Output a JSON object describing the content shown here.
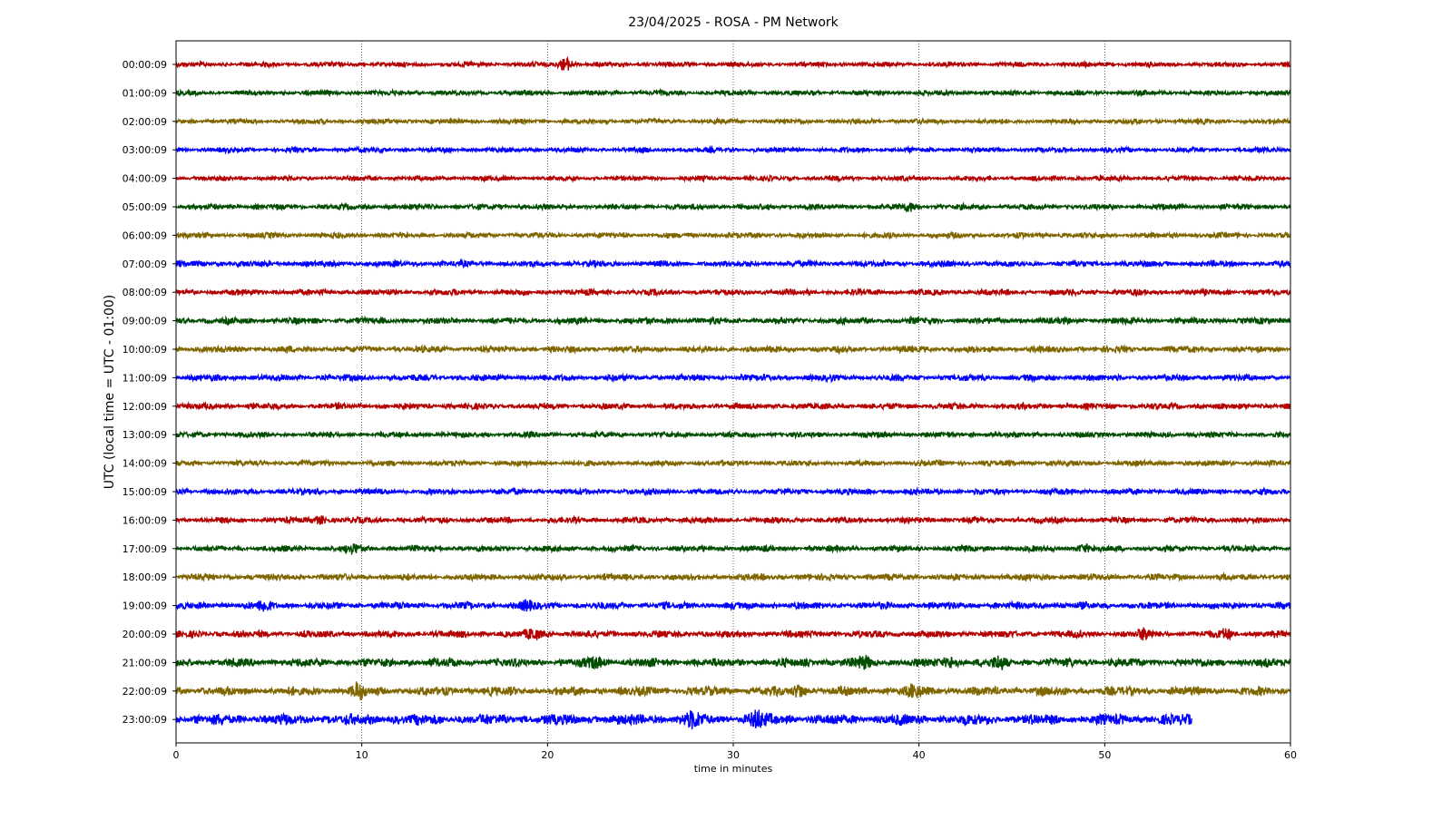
{
  "chart_data": {
    "type": "line",
    "title": "23/04/2025 - ROSA - PM Network",
    "xlabel": "time in minutes",
    "ylabel": "UTC (local time = UTC - 01:00)",
    "xlim": [
      0,
      60
    ],
    "x_ticks": [
      0,
      10,
      20,
      30,
      40,
      50,
      60
    ],
    "x_tick_labels": [
      "0",
      "10",
      "20",
      "30",
      "40",
      "50",
      "60"
    ],
    "grid": "vertical dotted lines at each x tick",
    "series": [
      {
        "name": "00:00:09",
        "color": "#b30000",
        "x_start": 0,
        "x_end": 60,
        "amplitude": 1.0,
        "events": [
          {
            "t": 21.0,
            "amp": 3.2
          }
        ]
      },
      {
        "name": "01:00:09",
        "color": "#004d00",
        "x_start": 0,
        "x_end": 60,
        "amplitude": 1.0,
        "events": []
      },
      {
        "name": "02:00:09",
        "color": "#806600",
        "x_start": 0,
        "x_end": 60,
        "amplitude": 1.0,
        "events": []
      },
      {
        "name": "03:00:09",
        "color": "#0000ff",
        "x_start": 0,
        "x_end": 60,
        "amplitude": 1.0,
        "events": []
      },
      {
        "name": "04:00:09",
        "color": "#b30000",
        "x_start": 0,
        "x_end": 60,
        "amplitude": 1.0,
        "events": []
      },
      {
        "name": "05:00:09",
        "color": "#004d00",
        "x_start": 0,
        "x_end": 60,
        "amplitude": 1.1,
        "events": [
          {
            "t": 39.5,
            "amp": 1.8
          }
        ]
      },
      {
        "name": "06:00:09",
        "color": "#806600",
        "x_start": 0,
        "x_end": 60,
        "amplitude": 1.1,
        "events": []
      },
      {
        "name": "07:00:09",
        "color": "#0000ff",
        "x_start": 0,
        "x_end": 60,
        "amplitude": 1.2,
        "events": []
      },
      {
        "name": "08:00:09",
        "color": "#b30000",
        "x_start": 0,
        "x_end": 60,
        "amplitude": 1.2,
        "events": []
      },
      {
        "name": "09:00:09",
        "color": "#004d00",
        "x_start": 0,
        "x_end": 60,
        "amplitude": 1.3,
        "events": []
      },
      {
        "name": "10:00:09",
        "color": "#806600",
        "x_start": 0,
        "x_end": 60,
        "amplitude": 1.3,
        "events": []
      },
      {
        "name": "11:00:09",
        "color": "#0000ff",
        "x_start": 0,
        "x_end": 60,
        "amplitude": 1.3,
        "events": []
      },
      {
        "name": "12:00:09",
        "color": "#b30000",
        "x_start": 0,
        "x_end": 60,
        "amplitude": 1.2,
        "events": []
      },
      {
        "name": "13:00:09",
        "color": "#004d00",
        "x_start": 0,
        "x_end": 60,
        "amplitude": 1.1,
        "events": []
      },
      {
        "name": "14:00:09",
        "color": "#806600",
        "x_start": 0,
        "x_end": 60,
        "amplitude": 1.1,
        "events": []
      },
      {
        "name": "15:00:09",
        "color": "#0000ff",
        "x_start": 0,
        "x_end": 60,
        "amplitude": 1.2,
        "events": []
      },
      {
        "name": "16:00:09",
        "color": "#b30000",
        "x_start": 0,
        "x_end": 60,
        "amplitude": 1.2,
        "events": [
          {
            "t": 7.8,
            "amp": 1.8
          }
        ]
      },
      {
        "name": "17:00:09",
        "color": "#004d00",
        "x_start": 0,
        "x_end": 60,
        "amplitude": 1.2,
        "events": [
          {
            "t": 9.6,
            "amp": 1.7
          },
          {
            "t": 48.9,
            "amp": 1.7
          }
        ]
      },
      {
        "name": "18:00:09",
        "color": "#806600",
        "x_start": 0,
        "x_end": 60,
        "amplitude": 1.3,
        "events": []
      },
      {
        "name": "19:00:09",
        "color": "#0000ff",
        "x_start": 0,
        "x_end": 60,
        "amplitude": 1.4,
        "events": [
          {
            "t": 4.7,
            "amp": 2.0
          },
          {
            "t": 18.8,
            "amp": 1.8
          }
        ]
      },
      {
        "name": "20:00:09",
        "color": "#b30000",
        "x_start": 0,
        "x_end": 60,
        "amplitude": 1.4,
        "events": [
          {
            "t": 19.3,
            "amp": 2.2
          },
          {
            "t": 52.2,
            "amp": 1.9
          },
          {
            "t": 56.5,
            "amp": 2.0
          }
        ]
      },
      {
        "name": "21:00:09",
        "color": "#004d00",
        "x_start": 0,
        "x_end": 60,
        "amplitude": 1.7,
        "events": [
          {
            "t": 22.6,
            "amp": 2.3
          },
          {
            "t": 37.0,
            "amp": 2.3
          },
          {
            "t": 41.7,
            "amp": 2.5
          },
          {
            "t": 44.3,
            "amp": 2.2
          }
        ]
      },
      {
        "name": "22:00:09",
        "color": "#806600",
        "x_start": 0,
        "x_end": 60,
        "amplitude": 1.8,
        "events": [
          {
            "t": 9.8,
            "amp": 2.8
          },
          {
            "t": 33.6,
            "amp": 2.5
          },
          {
            "t": 39.8,
            "amp": 2.3
          }
        ]
      },
      {
        "name": "23:00:09",
        "color": "#0000ff",
        "x_start": 0,
        "x_end": 54.7,
        "amplitude": 2.2,
        "events": [
          {
            "t": 27.8,
            "amp": 3.0
          },
          {
            "t": 31.3,
            "amp": 3.4
          }
        ]
      }
    ]
  }
}
